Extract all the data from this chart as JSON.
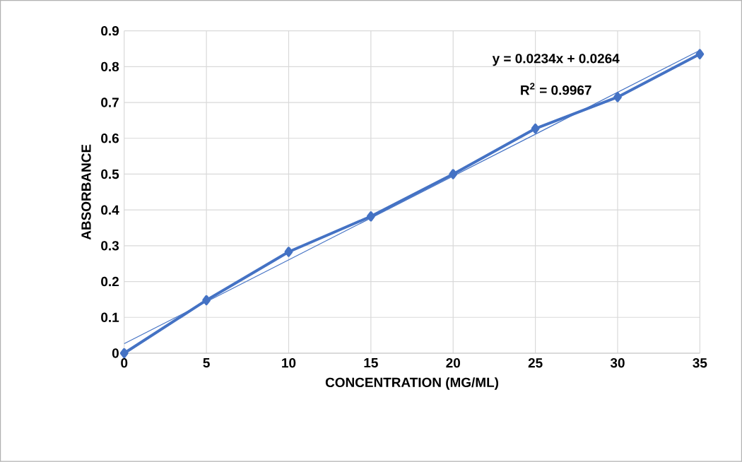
{
  "chart_data": {
    "type": "line",
    "xlabel": "CONCENTRATION (MG/ML)",
    "ylabel": "ABSORBANCE",
    "x": [
      0,
      5,
      10,
      15,
      20,
      25,
      30,
      35
    ],
    "series": [
      {
        "color": "#4472c4",
        "values": [
          0,
          0.148,
          0.283,
          0.382,
          0.5,
          0.627,
          0.715,
          0.835
        ]
      },
      {
        "type": "line",
        "color": "#4472c4",
        "marker": "none",
        "x": [
          0,
          35
        ],
        "values": [
          0.0264,
          0.8454
        ]
      }
    ],
    "marker": "diamond",
    "line_style": "solid",
    "xlim": [
      0,
      35
    ],
    "xticks": [
      0,
      5,
      10,
      15,
      20,
      25,
      30,
      35
    ],
    "ylim": [
      0,
      0.9
    ],
    "yticks": [
      0,
      0.1,
      0.2,
      0.3,
      0.4,
      0.5,
      0.6,
      0.7,
      0.8,
      0.9
    ],
    "grid": true,
    "annotations": [
      "y = 0.0234x + 0.0264",
      "R$^{2}$ = 0.9967"
    ]
  }
}
